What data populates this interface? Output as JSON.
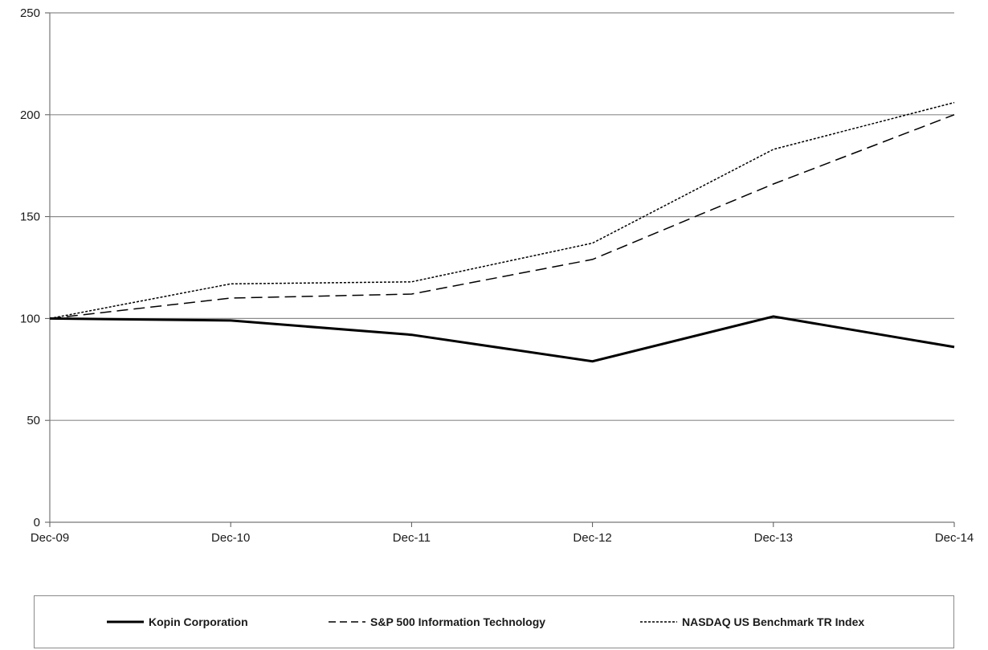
{
  "chart_data": {
    "type": "line",
    "title": "",
    "xlabel": "",
    "ylabel": "",
    "categories": [
      "Dec-09",
      "Dec-10",
      "Dec-11",
      "Dec-12",
      "Dec-13",
      "Dec-14"
    ],
    "ylim": [
      0,
      250
    ],
    "yticks": [
      "0",
      "50",
      "100",
      "150",
      "200",
      "250"
    ],
    "grid": "horizontal",
    "legend_placement": "bottom",
    "series": [
      {
        "name": "Kopin Corporation",
        "values": [
          100,
          99,
          92,
          79,
          101,
          86
        ],
        "style": "solid",
        "color": "#000000"
      },
      {
        "name": "S&P 500 Information Technology",
        "values": [
          100,
          110,
          112,
          129,
          166,
          200
        ],
        "style": "dashed",
        "color": "#000000"
      },
      {
        "name": "NASDAQ US Benchmark TR Index",
        "values": [
          100,
          117,
          118,
          137,
          183,
          206
        ],
        "style": "dotted",
        "color": "#000000"
      }
    ]
  }
}
